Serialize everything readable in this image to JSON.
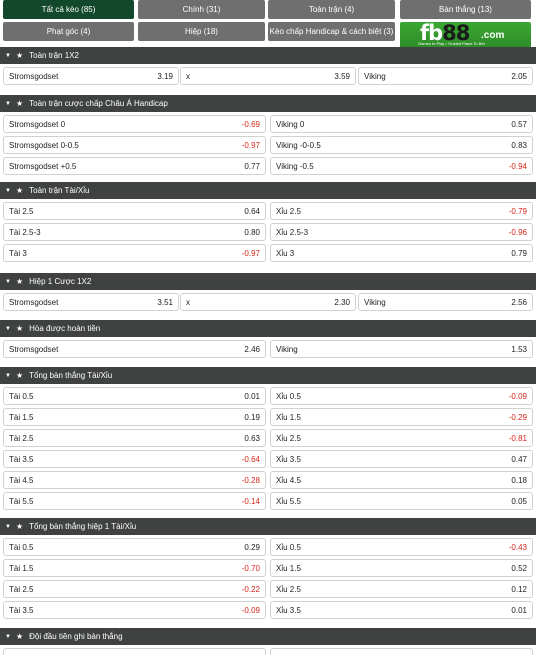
{
  "tabs": [
    "Tất cả kèo (85)",
    "Chính (31)",
    "Toàn trận (4)",
    "Bàn thắng (13)",
    "Phạt góc (4)",
    "Hiệp (18)",
    "Kèo chấp Handicap & cách biệt (3)"
  ],
  "logo": {
    "brand_a": "fb",
    "brand_b": "88",
    "brand_c": ".com",
    "tagline": "Games to Play • Trusted Place To Bet"
  },
  "colors": {
    "tab_active": "#12482c",
    "tab": "#6f6f6f",
    "section": "#3f4241",
    "negative": "#d9261c",
    "logo": "#3aa832"
  },
  "sections": [
    {
      "title": "Toàn trận 1X2",
      "cols": 3,
      "rows": [
        [
          [
            "Stromsgodset",
            "3.19"
          ],
          [
            "x",
            "3.59"
          ],
          [
            "Viking",
            "2.05"
          ]
        ]
      ]
    },
    {
      "title": "Toàn trận cược chấp Châu Á Handicap",
      "cols": 2,
      "rows": [
        [
          [
            "Stromsgodset 0",
            "-0.69"
          ],
          [
            "Viking 0",
            "0.57"
          ]
        ],
        [
          [
            "Stromsgodset 0-0.5",
            "-0.97"
          ],
          [
            "Viking -0-0.5",
            "0.83"
          ]
        ],
        [
          [
            "Stromsgodset +0.5",
            "0.77"
          ],
          [
            "Viking -0.5",
            "-0.94"
          ]
        ]
      ]
    },
    {
      "title": "Toàn trận Tài/Xỉu",
      "cols": 2,
      "rows": [
        [
          [
            "Tài 2.5",
            "0.64"
          ],
          [
            "Xỉu 2.5",
            "-0.79"
          ]
        ],
        [
          [
            "Tài 2.5-3",
            "0.80"
          ],
          [
            "Xỉu 2.5-3",
            "-0.96"
          ]
        ],
        [
          [
            "Tài 3",
            "-0.97"
          ],
          [
            "Xỉu 3",
            "0.79"
          ]
        ]
      ]
    },
    {
      "title": "Hiệp 1 Cược 1X2",
      "cols": 3,
      "rows": [
        [
          [
            "Stromsgodset",
            "3.51"
          ],
          [
            "x",
            "2.30"
          ],
          [
            "Viking",
            "2.56"
          ]
        ]
      ]
    },
    {
      "title": "Hòa được hoàn tiền",
      "cols": 2,
      "rows": [
        [
          [
            "Stromsgodset",
            "2.46"
          ],
          [
            "Viking",
            "1.53"
          ]
        ]
      ]
    },
    {
      "title": "Tổng bàn thắng Tài/Xỉu",
      "cols": 2,
      "rows": [
        [
          [
            "Tài 0.5",
            "0.01"
          ],
          [
            "Xỉu 0.5",
            "-0.09"
          ]
        ],
        [
          [
            "Tài 1.5",
            "0.19"
          ],
          [
            "Xỉu 1.5",
            "-0.29"
          ]
        ],
        [
          [
            "Tài 2.5",
            "0.63"
          ],
          [
            "Xỉu 2.5",
            "-0.81"
          ]
        ],
        [
          [
            "Tài 3.5",
            "-0.64"
          ],
          [
            "Xỉu 3.5",
            "0.47"
          ]
        ],
        [
          [
            "Tài 4.5",
            "-0.28"
          ],
          [
            "Xỉu 4.5",
            "0.18"
          ]
        ],
        [
          [
            "Tài 5.5",
            "-0.14"
          ],
          [
            "Xỉu 5.5",
            "0.05"
          ]
        ]
      ]
    },
    {
      "title": "Tổng bàn thắng hiệp 1 Tài/Xỉu",
      "cols": 2,
      "rows": [
        [
          [
            "Tài 0.5",
            "0.29"
          ],
          [
            "Xỉu 0.5",
            "-0.43"
          ]
        ],
        [
          [
            "Tài 1.5",
            "-0.70"
          ],
          [
            "Xỉu 1.5",
            "0.52"
          ]
        ],
        [
          [
            "Tài 2.5",
            "-0.22"
          ],
          [
            "Xỉu 2.5",
            "0.12"
          ]
        ],
        [
          [
            "Tài 3.5",
            "-0.09"
          ],
          [
            "Xỉu 3.5",
            "0.01"
          ]
        ]
      ]
    },
    {
      "title": "Đội đầu tiên ghi bàn thắng",
      "cols": 2,
      "rows": []
    }
  ]
}
